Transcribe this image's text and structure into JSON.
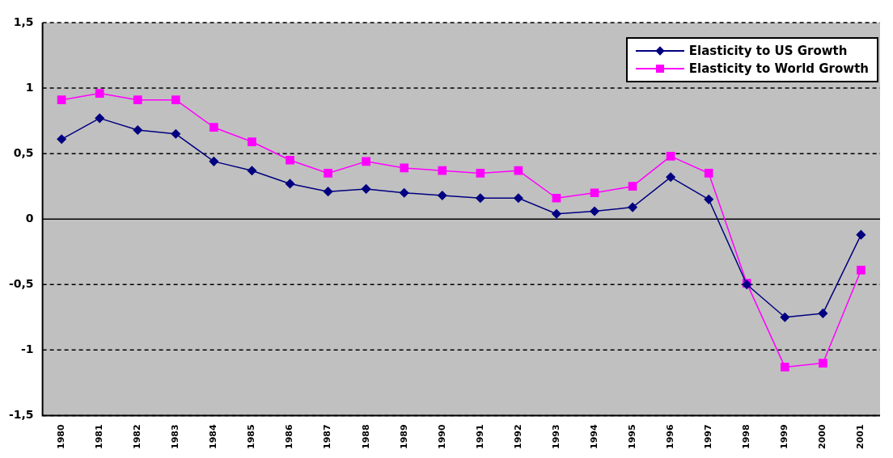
{
  "chart_data": {
    "type": "line",
    "categories": [
      "1980",
      "1981",
      "1982",
      "1983",
      "1984",
      "1985",
      "1986",
      "1987",
      "1988",
      "1989",
      "1990",
      "1991",
      "1992",
      "1993",
      "1994",
      "1995",
      "1996",
      "1997",
      "1998",
      "1999",
      "2000",
      "2001"
    ],
    "series": [
      {
        "name": "Elasticity  to US Growth",
        "color": "#000080",
        "marker": "diamond",
        "values": [
          0.61,
          0.77,
          0.68,
          0.65,
          0.44,
          0.37,
          0.27,
          0.21,
          0.23,
          0.2,
          0.18,
          0.16,
          0.16,
          0.04,
          0.06,
          0.09,
          0.32,
          0.15,
          -0.5,
          -0.75,
          -0.72,
          -0.12
        ]
      },
      {
        "name": "Elasticity  to World Growth",
        "color": "#ff00ff",
        "marker": "square",
        "values": [
          0.91,
          0.96,
          0.91,
          0.91,
          0.7,
          0.59,
          0.45,
          0.35,
          0.44,
          0.39,
          0.37,
          0.35,
          0.37,
          0.16,
          0.2,
          0.25,
          0.48,
          0.35,
          -0.49,
          -1.13,
          -1.1,
          -0.39
        ]
      }
    ],
    "ylim": [
      -1.5,
      1.5
    ],
    "yticks": [
      {
        "value": -1.5,
        "label": "-1,5"
      },
      -1,
      {
        "value": -0.5,
        "label": "-0,5"
      },
      0,
      {
        "value": 0.5,
        "label": "0,5"
      },
      1,
      {
        "value": 1.5,
        "label": "1,5"
      }
    ],
    "grid": "y",
    "legend": "top right"
  }
}
